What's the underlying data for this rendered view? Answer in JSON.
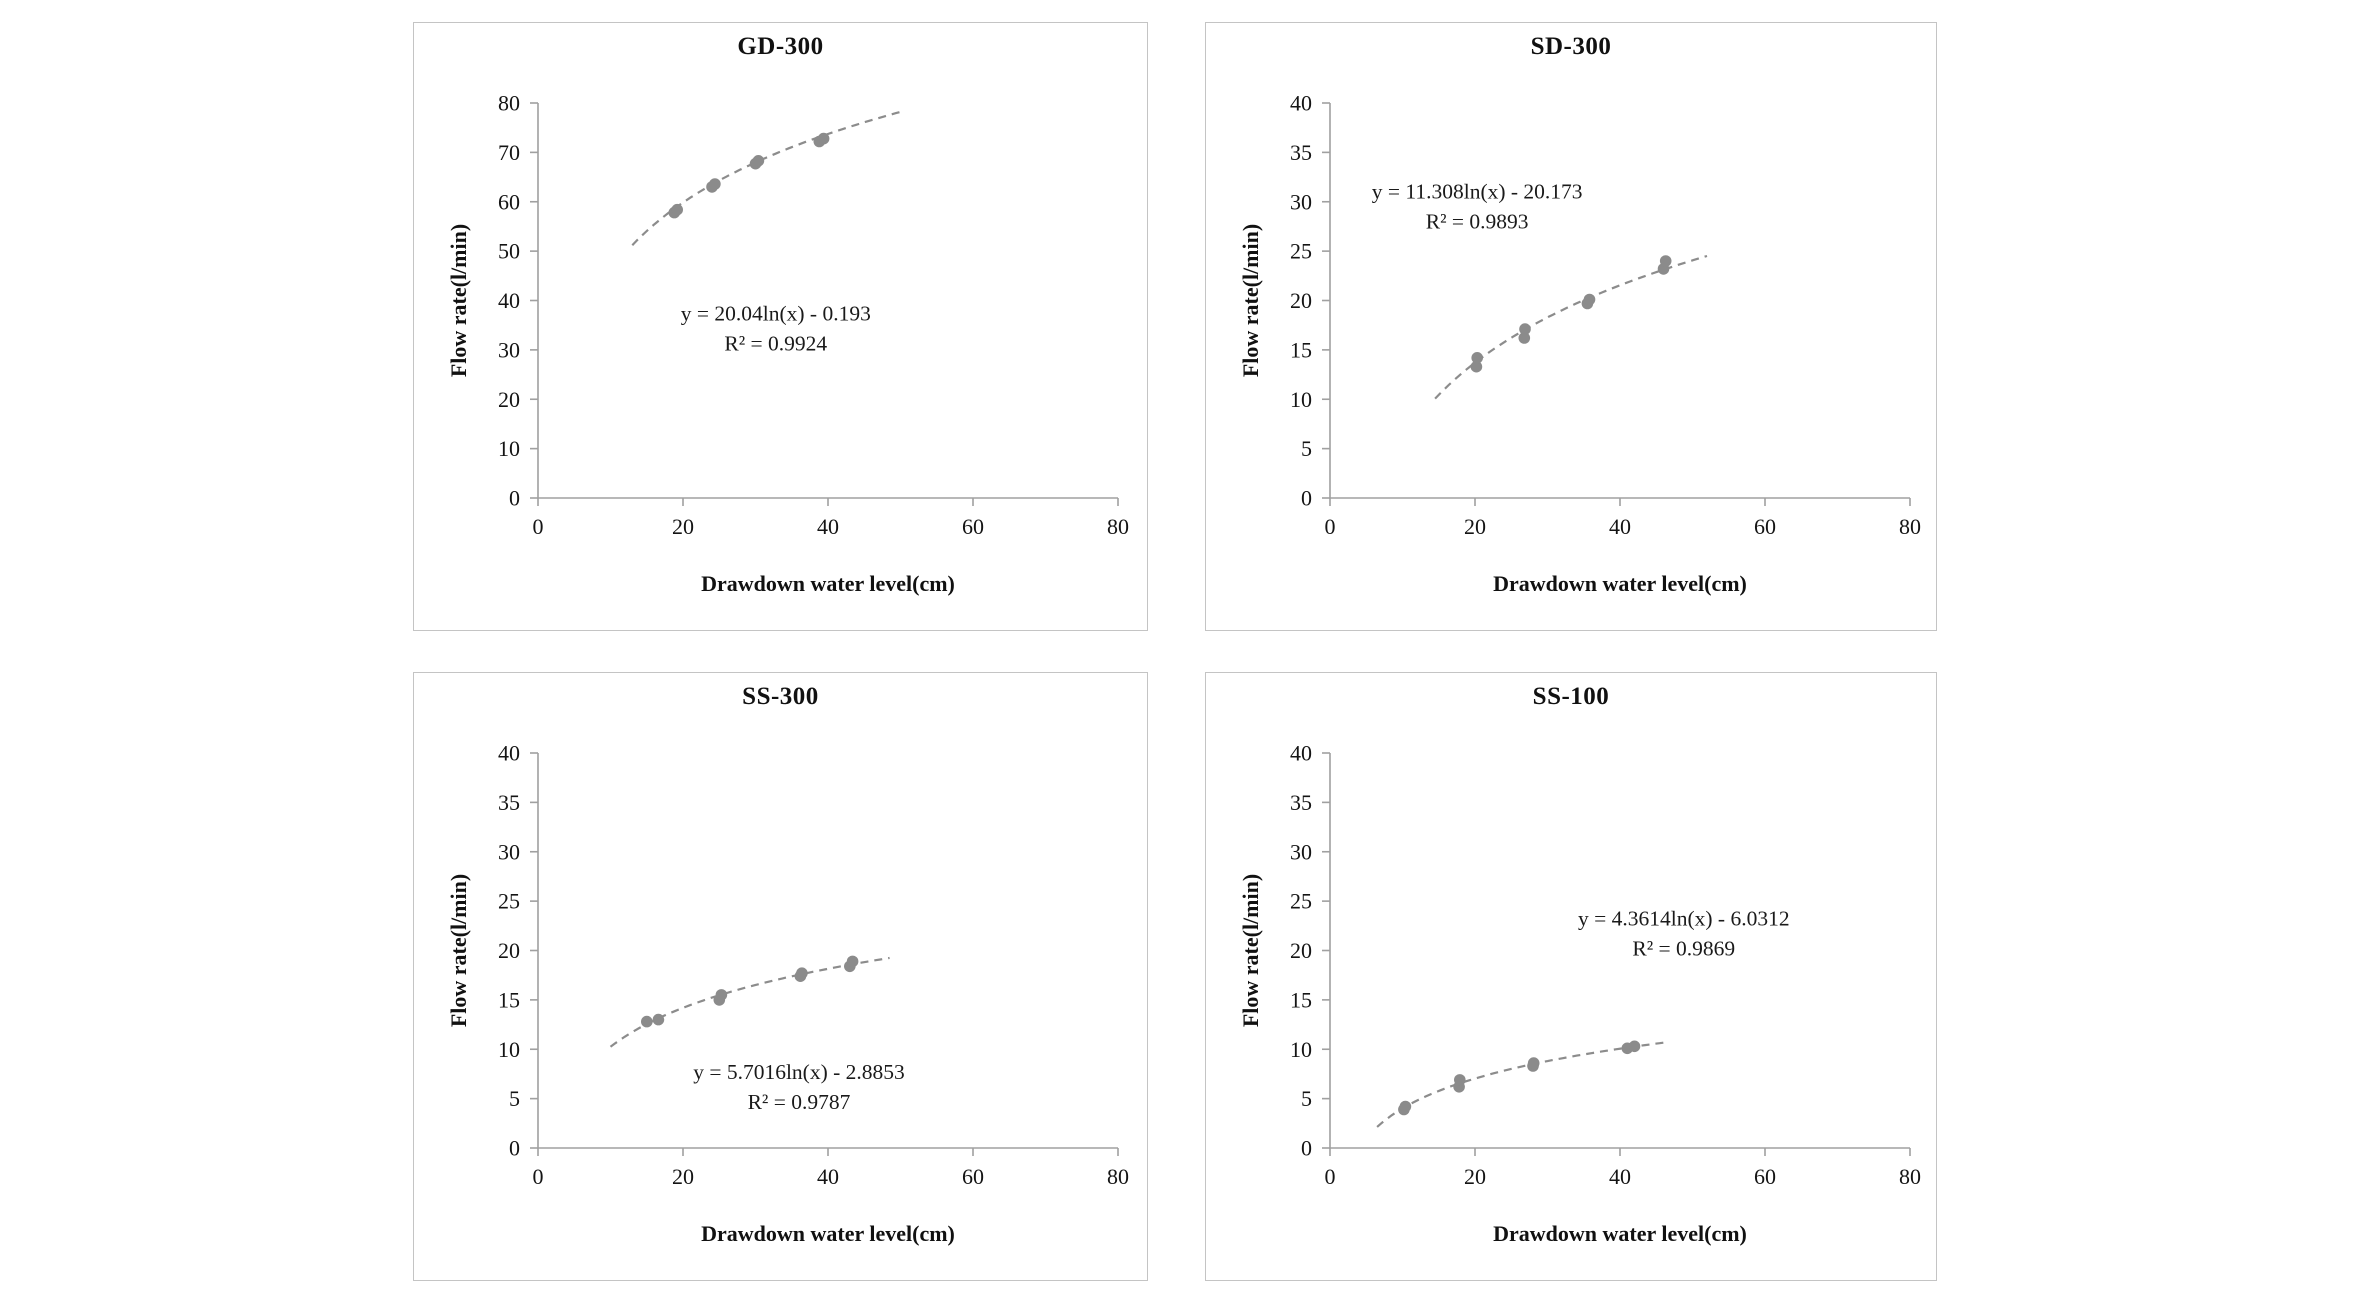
{
  "figure_caption": "",
  "colors": {
    "background": "#ffffff",
    "panel_border": "#c4c4c4",
    "axis": "#a0a0a0",
    "tick_label_text": "#141414",
    "marker": "#8b8b8b",
    "trendline": "#8c8c8c",
    "equation_text": "#1a1a1a"
  },
  "chart_data": [
    {
      "type": "scatter",
      "title": "GD-300",
      "xlabel": "Drawdown water level(cm)",
      "ylabel": "Flow rate(l/min)",
      "xlim": [
        0,
        80
      ],
      "ylim": [
        0,
        80
      ],
      "xtick_step": 20,
      "ytick_step": 10,
      "grid": false,
      "equation_line1": "y = 20.04ln(x) - 0.193",
      "equation_line2": "R² = 0.9924",
      "equation_pos": [
        32.8,
        34.5
      ],
      "trendline": {
        "type": "logarithmic",
        "slope": 20.04,
        "intercept": -0.193,
        "style": "dashed",
        "x_range": [
          13,
          50
        ]
      },
      "points": [
        [
          18.8,
          57.8
        ],
        [
          19.2,
          58.4
        ],
        [
          24.0,
          63.0
        ],
        [
          24.4,
          63.6
        ],
        [
          30.0,
          67.7
        ],
        [
          30.4,
          68.3
        ],
        [
          38.8,
          72.2
        ],
        [
          39.4,
          72.8
        ]
      ]
    },
    {
      "type": "scatter",
      "title": "SD-300",
      "xlabel": "Drawdown water level(cm)",
      "ylabel": "Flow rate(l/min)",
      "xlim": [
        0,
        80
      ],
      "ylim": [
        0,
        40
      ],
      "xtick_step": 20,
      "ytick_step": 5,
      "grid": false,
      "equation_line1": "y = 11.308ln(x) - 20.173",
      "equation_line2": "R² = 0.9893",
      "equation_pos": [
        20.3,
        29.6
      ],
      "trendline": {
        "type": "logarithmic",
        "slope": 11.308,
        "intercept": -20.173,
        "style": "dashed",
        "x_range": [
          14.5,
          52
        ]
      },
      "points": [
        [
          20.2,
          13.3
        ],
        [
          20.3,
          14.2
        ],
        [
          26.8,
          16.2
        ],
        [
          26.9,
          17.1
        ],
        [
          35.5,
          19.7
        ],
        [
          35.8,
          20.1
        ],
        [
          46.0,
          23.2
        ],
        [
          46.3,
          24.0
        ]
      ]
    },
    {
      "type": "scatter",
      "title": "SS-300",
      "xlabel": "Drawdown water level(cm)",
      "ylabel": "Flow rate(l/min)",
      "xlim": [
        0,
        80
      ],
      "ylim": [
        0,
        40
      ],
      "xtick_step": 20,
      "ytick_step": 5,
      "grid": false,
      "equation_line1": "y = 5.7016ln(x) - 2.8853",
      "equation_line2": "R² = 0.9787",
      "equation_pos": [
        36,
        6.3
      ],
      "trendline": {
        "type": "logarithmic",
        "slope": 5.7016,
        "intercept": -2.8853,
        "style": "dashed",
        "x_range": [
          10,
          48.5
        ]
      },
      "points": [
        [
          15.0,
          12.8
        ],
        [
          16.6,
          13.0
        ],
        [
          25.0,
          15.0
        ],
        [
          25.3,
          15.5
        ],
        [
          36.2,
          17.4
        ],
        [
          36.4,
          17.7
        ],
        [
          43.0,
          18.4
        ],
        [
          43.4,
          18.9
        ]
      ]
    },
    {
      "type": "scatter",
      "title": "SS-100",
      "xlabel": "Drawdown water level(cm)",
      "ylabel": "Flow rate(l/min)",
      "xlim": [
        0,
        80
      ],
      "ylim": [
        0,
        40
      ],
      "xtick_step": 20,
      "ytick_step": 5,
      "grid": false,
      "equation_line1": "y = 4.3614ln(x) - 6.0312",
      "equation_line2": "R² = 0.9869",
      "equation_pos": [
        48.8,
        21.8
      ],
      "trendline": {
        "type": "logarithmic",
        "slope": 4.3614,
        "intercept": -6.0312,
        "style": "dashed",
        "x_range": [
          6.5,
          46.8
        ]
      },
      "points": [
        [
          10.2,
          3.9
        ],
        [
          10.4,
          4.2
        ],
        [
          17.8,
          6.2
        ],
        [
          17.9,
          6.9
        ],
        [
          28.0,
          8.3
        ],
        [
          28.1,
          8.6
        ],
        [
          41.0,
          10.1
        ],
        [
          42.0,
          10.3
        ]
      ]
    }
  ]
}
